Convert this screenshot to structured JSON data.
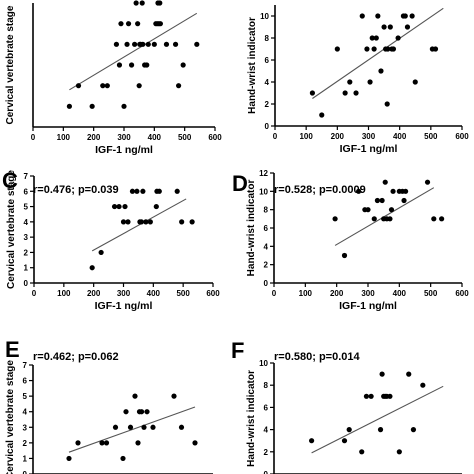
{
  "chart_data": [
    {
      "type": "scatter",
      "panel_label": "",
      "stat_text": "",
      "xlabel": "IGF-1 ng/ml",
      "ylabel": "Cervical vertebrate stage",
      "xlim": [
        0,
        600
      ],
      "ylim": [
        0,
        6
      ],
      "xticks": [
        "0",
        "100",
        "200",
        "300",
        "400",
        "500",
        "600"
      ],
      "yticks": [],
      "trendline": [
        [
          120,
          1.8
        ],
        [
          540,
          5.5
        ]
      ],
      "points": [
        [
          120,
          1
        ],
        [
          150,
          2
        ],
        [
          195,
          1
        ],
        [
          230,
          2
        ],
        [
          245,
          2
        ],
        [
          275,
          4
        ],
        [
          285,
          3
        ],
        [
          290,
          5
        ],
        [
          300,
          1
        ],
        [
          310,
          4
        ],
        [
          315,
          5
        ],
        [
          325,
          3
        ],
        [
          335,
          4
        ],
        [
          340,
          6
        ],
        [
          345,
          5
        ],
        [
          350,
          2
        ],
        [
          352,
          4
        ],
        [
          355,
          4
        ],
        [
          360,
          6
        ],
        [
          362,
          4
        ],
        [
          368,
          3
        ],
        [
          375,
          3
        ],
        [
          380,
          4
        ],
        [
          400,
          4
        ],
        [
          405,
          5
        ],
        [
          410,
          5
        ],
        [
          412,
          6
        ],
        [
          415,
          5
        ],
        [
          418,
          6
        ],
        [
          420,
          5
        ],
        [
          440,
          4
        ],
        [
          470,
          4
        ],
        [
          480,
          2
        ],
        [
          495,
          3
        ],
        [
          540,
          4
        ]
      ]
    },
    {
      "type": "scatter",
      "panel_label": "",
      "stat_text": "",
      "xlabel": "IGF-1 ng/ml",
      "ylabel": "Hand-wrist indicator",
      "xlim": [
        0,
        600
      ],
      "ylim": [
        0,
        11
      ],
      "xticks": [
        "0",
        "100",
        "200",
        "300",
        "400",
        "500",
        "600"
      ],
      "yticks": [
        "0",
        "2",
        "4",
        "6",
        "8",
        "10"
      ],
      "trendline": [
        [
          120,
          2.5
        ],
        [
          540,
          10.7
        ]
      ],
      "points": [
        [
          120,
          3
        ],
        [
          150,
          1
        ],
        [
          200,
          7
        ],
        [
          225,
          3
        ],
        [
          240,
          4
        ],
        [
          260,
          3
        ],
        [
          280,
          10
        ],
        [
          295,
          7
        ],
        [
          305,
          4
        ],
        [
          312,
          8
        ],
        [
          318,
          7
        ],
        [
          325,
          8
        ],
        [
          330,
          10
        ],
        [
          340,
          5
        ],
        [
          350,
          9
        ],
        [
          355,
          7
        ],
        [
          360,
          2
        ],
        [
          362,
          7
        ],
        [
          370,
          9
        ],
        [
          375,
          7
        ],
        [
          380,
          7
        ],
        [
          395,
          8
        ],
        [
          412,
          10
        ],
        [
          418,
          10
        ],
        [
          425,
          9
        ],
        [
          440,
          10
        ],
        [
          450,
          4
        ],
        [
          505,
          7
        ],
        [
          515,
          7
        ]
      ]
    },
    {
      "type": "scatter",
      "panel_label": "C",
      "stat_text": "r=0.476; p=0.039",
      "xlabel": "IGF-1 ng/ml",
      "ylabel": "Cervical vertebrate stage",
      "xlim": [
        0,
        600
      ],
      "ylim": [
        0,
        7
      ],
      "xticks": [
        "0",
        "100",
        "200",
        "300",
        "400",
        "500",
        "600"
      ],
      "yticks": [
        "0",
        "1",
        "2",
        "3",
        "4",
        "5",
        "6",
        "7"
      ],
      "trendline": [
        [
          195,
          2.1
        ],
        [
          510,
          5.5
        ]
      ],
      "points": [
        [
          195,
          1
        ],
        [
          225,
          2
        ],
        [
          270,
          5
        ],
        [
          285,
          5
        ],
        [
          300,
          4
        ],
        [
          305,
          5
        ],
        [
          315,
          4
        ],
        [
          330,
          6
        ],
        [
          345,
          6
        ],
        [
          355,
          4
        ],
        [
          360,
          4
        ],
        [
          365,
          6
        ],
        [
          375,
          4
        ],
        [
          390,
          4
        ],
        [
          410,
          5
        ],
        [
          412,
          6
        ],
        [
          420,
          6
        ],
        [
          480,
          6
        ],
        [
          495,
          4
        ],
        [
          530,
          4
        ]
      ]
    },
    {
      "type": "scatter",
      "panel_label": "D",
      "stat_text": "r=0.528; p=0.0009",
      "xlabel": "IGF-1 ng/ml",
      "ylabel": "Hand-wrist indicator",
      "xlim": [
        0,
        600
      ],
      "ylim": [
        0,
        12
      ],
      "xticks": [
        "0",
        "100",
        "200",
        "300",
        "400",
        "500",
        "600"
      ],
      "yticks": [
        "0",
        "2",
        "4",
        "6",
        "8",
        "10",
        "12"
      ],
      "trendline": [
        [
          195,
          4.1
        ],
        [
          510,
          10.4
        ]
      ],
      "points": [
        [
          195,
          7
        ],
        [
          225,
          3
        ],
        [
          270,
          10
        ],
        [
          290,
          8
        ],
        [
          300,
          8
        ],
        [
          320,
          7
        ],
        [
          330,
          9
        ],
        [
          345,
          9
        ],
        [
          350,
          7
        ],
        [
          355,
          11
        ],
        [
          360,
          7
        ],
        [
          370,
          7
        ],
        [
          375,
          8
        ],
        [
          380,
          10
        ],
        [
          400,
          10
        ],
        [
          410,
          10
        ],
        [
          415,
          9
        ],
        [
          420,
          10
        ],
        [
          490,
          11
        ],
        [
          510,
          7
        ],
        [
          535,
          7
        ]
      ]
    },
    {
      "type": "scatter",
      "panel_label": "E",
      "stat_text": "r=0.462; p=0.062",
      "xlabel": "",
      "ylabel": "Cervical vertebrate stage",
      "xlim": [
        0,
        600
      ],
      "ylim": [
        0,
        7
      ],
      "xticks": [],
      "yticks": [
        "0",
        "1",
        "2",
        "3",
        "4",
        "5",
        "6",
        "7"
      ],
      "trendline": [
        [
          120,
          1.4
        ],
        [
          540,
          4.3
        ]
      ],
      "points": [
        [
          120,
          1
        ],
        [
          150,
          2
        ],
        [
          230,
          2
        ],
        [
          245,
          2
        ],
        [
          275,
          3
        ],
        [
          300,
          1
        ],
        [
          310,
          4
        ],
        [
          325,
          3
        ],
        [
          340,
          5
        ],
        [
          350,
          2
        ],
        [
          355,
          4
        ],
        [
          362,
          4
        ],
        [
          370,
          3
        ],
        [
          380,
          4
        ],
        [
          400,
          3
        ],
        [
          470,
          5
        ],
        [
          495,
          3
        ],
        [
          540,
          2
        ]
      ]
    },
    {
      "type": "scatter",
      "panel_label": "F",
      "stat_text": "r=0.580; p=0.014",
      "xlabel": "",
      "ylabel": "Hand-wrist indicator",
      "xlim": [
        0,
        600
      ],
      "ylim": [
        0,
        10
      ],
      "xticks": [],
      "yticks": [
        "0",
        "2",
        "4",
        "6",
        "8",
        "10"
      ],
      "trendline": [
        [
          120,
          1.9
        ],
        [
          540,
          7.9
        ]
      ],
      "points": [
        [
          120,
          3
        ],
        [
          225,
          3
        ],
        [
          240,
          4
        ],
        [
          280,
          2
        ],
        [
          295,
          7
        ],
        [
          310,
          7
        ],
        [
          340,
          4
        ],
        [
          345,
          9
        ],
        [
          350,
          7
        ],
        [
          355,
          7
        ],
        [
          360,
          7
        ],
        [
          370,
          7
        ],
        [
          400,
          2
        ],
        [
          430,
          9
        ],
        [
          445,
          4
        ],
        [
          475,
          8
        ]
      ]
    }
  ]
}
